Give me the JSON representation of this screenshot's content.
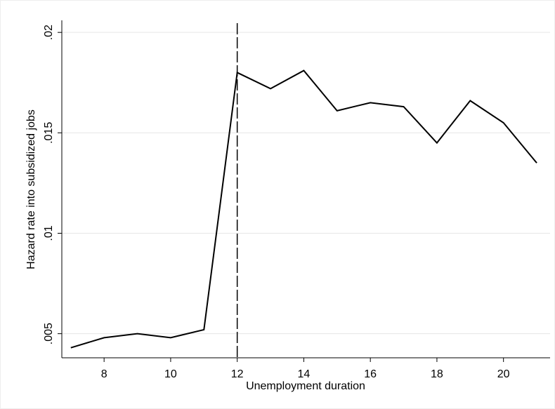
{
  "chart_data": {
    "type": "line",
    "x_label": "Unemployment duration",
    "y_label": "Hazard rate into subsidized jobs",
    "x": [
      7,
      8,
      9,
      10,
      11,
      12,
      13,
      14,
      15,
      16,
      17,
      18,
      19,
      20,
      21
    ],
    "series": [
      {
        "color": "#000000",
        "values": [
          0.0043,
          0.0048,
          0.005,
          0.0048,
          0.0052,
          0.018,
          0.0172,
          0.0181,
          0.0161,
          0.0165,
          0.0163,
          0.0145,
          0.0166,
          0.0155,
          0.0135
        ]
      }
    ],
    "xlim": [
      6.73,
      21.4
    ],
    "xticks": [
      8,
      10,
      12,
      14,
      16,
      18,
      20
    ],
    "ylim": [
      0.0038,
      0.0206
    ],
    "yticks": [
      {
        "value": 0.005,
        "label": ".005"
      },
      {
        "value": 0.01,
        "label": ".01"
      },
      {
        "value": 0.015,
        "label": ".015"
      },
      {
        "value": 0.02,
        "label": ".02"
      }
    ],
    "grid": true,
    "vline": 12
  }
}
